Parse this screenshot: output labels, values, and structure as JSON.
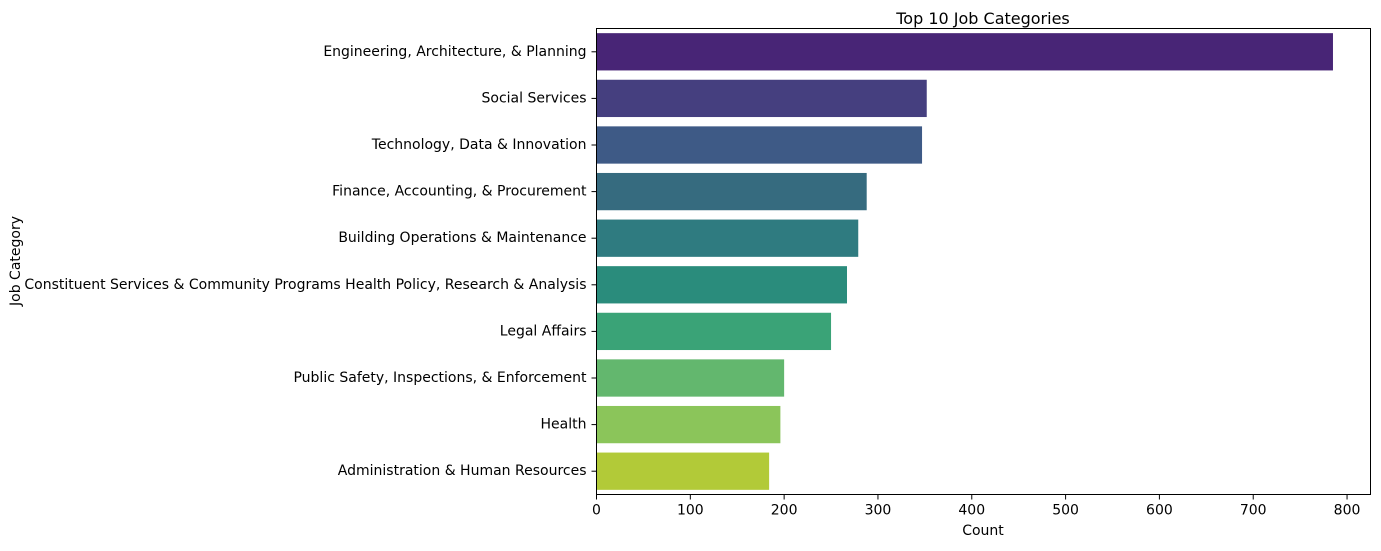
{
  "chart_data": {
    "type": "bar",
    "orientation": "horizontal",
    "title": "Top 10 Job Categories",
    "xlabel": "Count",
    "ylabel": "Job Category",
    "categories": [
      "Engineering, Architecture, & Planning",
      "Social Services",
      "Technology, Data & Innovation",
      "Finance, Accounting, & Procurement",
      "Building Operations & Maintenance",
      "Constituent Services & Community Programs Health Policy, Research & Analysis",
      "Legal Affairs",
      "Public Safety, Inspections, & Enforcement",
      "Health",
      "Administration & Human Resources"
    ],
    "values": [
      785,
      352,
      347,
      288,
      279,
      267,
      250,
      200,
      196,
      184
    ],
    "colors": [
      "#482576",
      "#453f7f",
      "#3e5a86",
      "#366b7f",
      "#2f7b80",
      "#2a8c7c",
      "#3aa377",
      "#63b76e",
      "#8bc55a",
      "#b2ca38"
    ],
    "xlim": [
      0,
      825
    ],
    "xticks": [
      0,
      100,
      200,
      300,
      400,
      500,
      600,
      700,
      800
    ],
    "grid": false,
    "legend": "none"
  }
}
